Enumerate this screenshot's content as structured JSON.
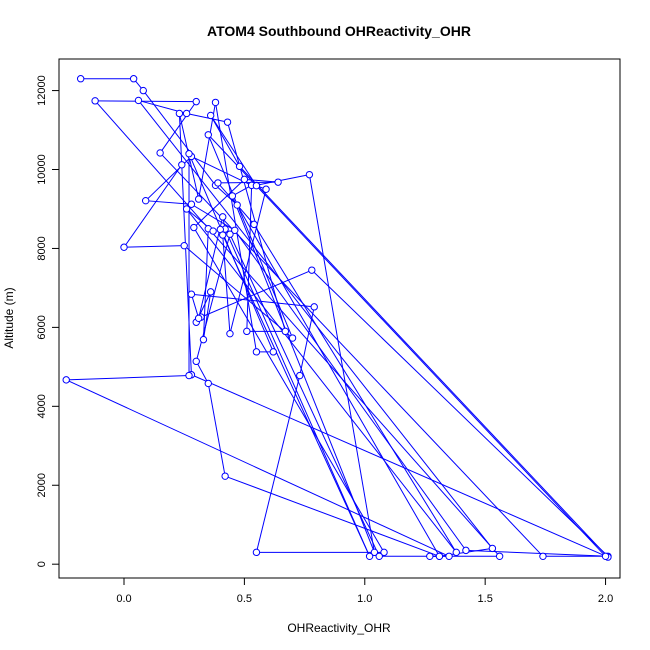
{
  "chart_data": {
    "type": "scatter",
    "title": "ATOM4 Southbound OHReactivity_OHR",
    "xlabel": "OHReactivity_OHR",
    "ylabel": "Altitude (m)",
    "xlim": [
      -0.27,
      2.06
    ],
    "ylim": [
      -350,
      12800
    ],
    "x_ticks": [
      0.0,
      0.5,
      1.0,
      1.5,
      2.0
    ],
    "x_tick_labels": [
      "0.0",
      "0.5",
      "1.0",
      "1.5",
      "2.0"
    ],
    "y_ticks": [
      0,
      2000,
      4000,
      6000,
      8000,
      10000,
      12000
    ],
    "y_tick_labels": [
      "0",
      "2000",
      "4000",
      "6000",
      "8000",
      "10000",
      "12000"
    ],
    "series": [
      {
        "color": "#0000ff",
        "connected": true,
        "marker": "open-circle",
        "x": [
          -0.18,
          0.04,
          0.08,
          0.38,
          0.47,
          1.31,
          1.53,
          0.06,
          0.26,
          0.43,
          0.67,
          0.51,
          0.53,
          0.55,
          0.77,
          1.04,
          0.45,
          0.53,
          0.28,
          0.09,
          0.28,
          0.46,
          1.42,
          2.01,
          0.78,
          0.32,
          0.3,
          0.36,
          0.33,
          0.35,
          0.37,
          0.26,
          1.38,
          0.54,
          0.39,
          0.64,
          0.5,
          0.29,
          1.08,
          0.55,
          0.73,
          0.79,
          0.28,
          0.31,
          0.41,
          0.42,
          1.02,
          0.4,
          0.41,
          0.44,
          0.59,
          0.55,
          0.36,
          0.48,
          2.01,
          0.28,
          0.23,
          0.31,
          0.38,
          0.55,
          0.62,
          0.27,
          0.27,
          -0.24,
          1.35,
          1.06,
          0.44,
          0.3,
          0.35,
          0.42,
          1.31,
          1.27,
          1.56,
          -0.12,
          0.3,
          0.15,
          1.74,
          2.0,
          0.35,
          0.7,
          0.25,
          0.0,
          0.24
        ],
        "y": [
          12300,
          12300,
          12000,
          9600,
          9100,
          200,
          400,
          11750,
          11420,
          11200,
          5900,
          5900,
          9600,
          9600,
          9870,
          300,
          9330,
          9600,
          10330,
          9210,
          9120,
          8460,
          350,
          200,
          7450,
          6260,
          6130,
          6900,
          5690,
          8500,
          8440,
          9000,
          300,
          8610,
          9660,
          9680,
          9750,
          8530,
          300,
          300,
          4780,
          6520,
          6840,
          6230,
          8800,
          8490,
          200,
          8480,
          8340,
          5840,
          9500,
          9590,
          11370,
          10080,
          180,
          4800,
          11420,
          9250,
          11700,
          5380,
          5380,
          10400,
          4780,
          4670,
          200,
          200,
          8360,
          5140,
          4580,
          2230,
          200,
          200,
          200,
          11740,
          11720,
          10420,
          200,
          200,
          10880,
          5730,
          8070,
          8030,
          10120
        ]
      }
    ]
  }
}
